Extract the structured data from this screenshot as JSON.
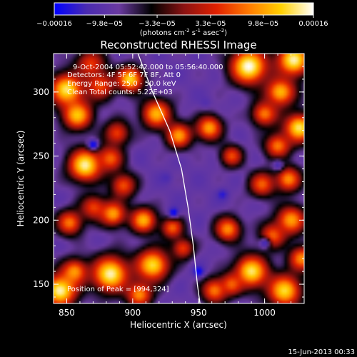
{
  "chart_data": {
    "type": "heatmap",
    "title": "Reconstructed RHESSI Image",
    "xlabel": "Heliocentric X (arcsec)",
    "ylabel": "Heliocentric Y (arcsec)",
    "xlim": [
      840,
      1030
    ],
    "ylim": [
      135,
      330
    ],
    "x_ticks": [
      850,
      900,
      950,
      1000
    ],
    "y_ticks": [
      150,
      200,
      250,
      300
    ],
    "x_tick_labels": [
      "850",
      "900",
      "950",
      "1000"
    ],
    "y_tick_labels": [
      "150",
      "200",
      "250",
      "300"
    ],
    "colorbar": {
      "tick_labels": [
        "−0.00016",
        "−9.8e−05",
        "−3.3e−05",
        "3.3e−05",
        "9.8e−05",
        "0.00016"
      ],
      "tick_values": [
        -0.00016,
        -9.8e-05,
        -3.3e-05,
        3.3e-05,
        9.8e-05,
        0.00016
      ],
      "range": [
        -0.00016,
        0.00016
      ],
      "unit_text": "(photons cm",
      "unit_sup1": "-2",
      "unit_mid": " s",
      "unit_sup2": "-1",
      "unit_mid2": " asec",
      "unit_sup3": "-2",
      "unit_end": ")",
      "colors": [
        "#0000ff",
        "#4a2bb0",
        "#6a3aa0",
        "#000000",
        "#8a1212",
        "#e02000",
        "#ff7a00",
        "#ffd000",
        "#ffffff"
      ]
    },
    "annotations": {
      "time_range": "9-Oct-2004 05:52:42.000 to 05:56:40.000",
      "detectors": "Detectors: 4F 5F 6F 7F 8F, Att 0",
      "energy": "Energy Range: 25.0 - 50.0 keV",
      "clean": "Clean     Total counts: 5.22E+03",
      "peak": "Position of Peak = [994,324]"
    },
    "limb_curve": [
      [
        904,
        330
      ],
      [
        915,
        300
      ],
      [
        928,
        270
      ],
      [
        937,
        240
      ],
      [
        942,
        210
      ],
      [
        946,
        180
      ],
      [
        949,
        150
      ],
      [
        951,
        135
      ]
    ],
    "peak": [
      994,
      324
    ],
    "blobs": [
      {
        "x": 850,
        "y": 302,
        "v": 0.00014,
        "s": 9
      },
      {
        "x": 875,
        "y": 305,
        "v": 6e-05,
        "s": 8
      },
      {
        "x": 868,
        "y": 322,
        "v": 5e-05,
        "s": 8
      },
      {
        "x": 898,
        "y": 310,
        "v": 0.00013,
        "s": 7
      },
      {
        "x": 918,
        "y": 283,
        "v": 0.00011,
        "s": 8
      },
      {
        "x": 935,
        "y": 266,
        "v": 0.0001,
        "s": 7
      },
      {
        "x": 858,
        "y": 282,
        "v": 0.00012,
        "s": 8
      },
      {
        "x": 888,
        "y": 268,
        "v": 5e-05,
        "s": 7
      },
      {
        "x": 864,
        "y": 243,
        "v": 0.00015,
        "s": 9
      },
      {
        "x": 883,
        "y": 248,
        "v": 7e-05,
        "s": 7
      },
      {
        "x": 893,
        "y": 227,
        "v": 6e-05,
        "s": 7
      },
      {
        "x": 870,
        "y": 210,
        "v": 5e-05,
        "s": 7
      },
      {
        "x": 852,
        "y": 198,
        "v": 8e-05,
        "s": 7
      },
      {
        "x": 885,
        "y": 205,
        "v": 0.0001,
        "s": 7
      },
      {
        "x": 908,
        "y": 200,
        "v": 0.00011,
        "s": 7
      },
      {
        "x": 930,
        "y": 194,
        "v": 7e-05,
        "s": 6
      },
      {
        "x": 883,
        "y": 158,
        "v": 0.00015,
        "s": 10
      },
      {
        "x": 856,
        "y": 160,
        "v": 9e-05,
        "s": 7
      },
      {
        "x": 845,
        "y": 145,
        "v": 0.00015,
        "s": 9
      },
      {
        "x": 915,
        "y": 165,
        "v": 0.00013,
        "s": 9
      },
      {
        "x": 905,
        "y": 142,
        "v": 9e-05,
        "s": 7
      },
      {
        "x": 938,
        "y": 178,
        "v": 5e-05,
        "s": 6
      },
      {
        "x": 988,
        "y": 320,
        "v": 0.00016,
        "s": 10
      },
      {
        "x": 1022,
        "y": 325,
        "v": 0.00015,
        "s": 9
      },
      {
        "x": 1012,
        "y": 300,
        "v": 0.00011,
        "s": 8
      },
      {
        "x": 1000,
        "y": 283,
        "v": 8e-05,
        "s": 7
      },
      {
        "x": 1026,
        "y": 272,
        "v": 0.00014,
        "s": 8
      },
      {
        "x": 958,
        "y": 272,
        "v": 0.0001,
        "s": 7
      },
      {
        "x": 1010,
        "y": 258,
        "v": 8e-05,
        "s": 7
      },
      {
        "x": 975,
        "y": 250,
        "v": 6e-05,
        "s": 6
      },
      {
        "x": 1018,
        "y": 232,
        "v": 9e-05,
        "s": 7
      },
      {
        "x": 998,
        "y": 228,
        "v": 7e-05,
        "s": 7
      },
      {
        "x": 1020,
        "y": 200,
        "v": 0.0001,
        "s": 8
      },
      {
        "x": 1006,
        "y": 188,
        "v": 7e-05,
        "s": 7
      },
      {
        "x": 972,
        "y": 193,
        "v": 9e-05,
        "s": 7
      },
      {
        "x": 990,
        "y": 160,
        "v": 0.00014,
        "s": 9
      },
      {
        "x": 1015,
        "y": 145,
        "v": 0.00013,
        "s": 9
      },
      {
        "x": 962,
        "y": 145,
        "v": 8e-05,
        "s": 7
      },
      {
        "x": 975,
        "y": 150,
        "v": 7e-05,
        "s": 6
      },
      {
        "x": 1028,
        "y": 170,
        "v": 9e-05,
        "s": 7
      },
      {
        "x": 870,
        "y": 259,
        "v": -0.00016,
        "s": 3
      },
      {
        "x": 931,
        "y": 206,
        "v": -0.00016,
        "s": 3
      },
      {
        "x": 950,
        "y": 160,
        "v": -0.00016,
        "s": 3
      },
      {
        "x": 968,
        "y": 220,
        "v": -0.00014,
        "s": 3
      },
      {
        "x": 925,
        "y": 233,
        "v": -0.00012,
        "s": 3
      },
      {
        "x": 1000,
        "y": 182,
        "v": -0.00013,
        "s": 3
      },
      {
        "x": 1010,
        "y": 243,
        "v": -0.00012,
        "s": 3
      },
      {
        "x": 955,
        "y": 292,
        "v": -0.00011,
        "s": 3
      }
    ]
  },
  "footer": {
    "timestamp": "15-Jun-2013 00:33"
  }
}
